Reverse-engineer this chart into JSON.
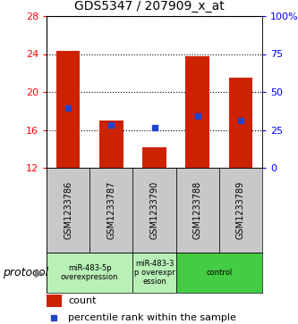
{
  "title": "GDS5347 / 207909_x_at",
  "samples": [
    "GSM1233786",
    "GSM1233787",
    "GSM1233790",
    "GSM1233788",
    "GSM1233789"
  ],
  "bar_bottoms": [
    12,
    12,
    12,
    12,
    12
  ],
  "bar_tops": [
    24.3,
    17.0,
    14.2,
    23.8,
    21.5
  ],
  "blue_markers": [
    18.3,
    16.5,
    16.2,
    17.5,
    17.0
  ],
  "ylim_left": [
    12,
    28
  ],
  "ylim_right": [
    0,
    100
  ],
  "yticks_left": [
    12,
    16,
    20,
    24,
    28
  ],
  "yticks_right": [
    0,
    25,
    50,
    75,
    100
  ],
  "ytick_labels_right": [
    "0",
    "25",
    "50",
    "75",
    "100%"
  ],
  "bar_color": "#cc2200",
  "blue_color": "#2244cc",
  "bar_width": 0.55,
  "group_spans": [
    [
      0,
      1,
      "miR-483-5p\noverexpression",
      "#b8f0b8"
    ],
    [
      2,
      2,
      "miR-483-3\np overexpr\nession",
      "#b8f0b8"
    ],
    [
      3,
      4,
      "control",
      "#44cc44"
    ]
  ],
  "protocol_label": "protocol",
  "legend_count_label": "count",
  "legend_percentile_label": "percentile rank within the sample",
  "sample_bg": "#c8c8c8",
  "title_fontsize": 10
}
